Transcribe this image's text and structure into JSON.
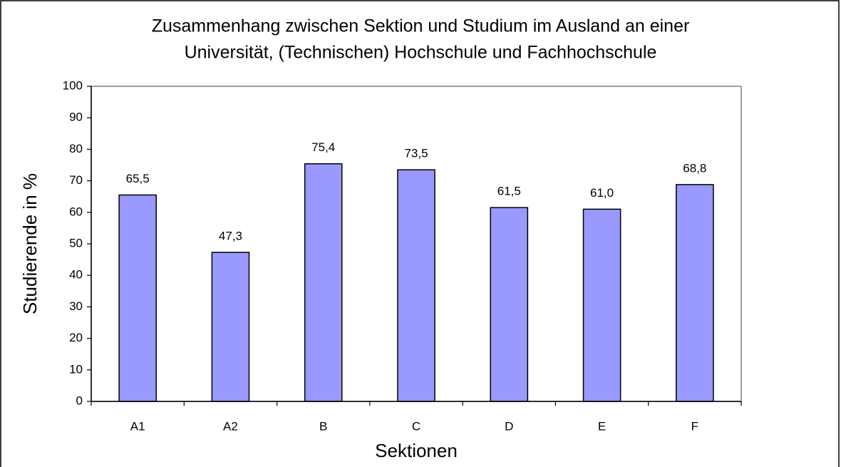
{
  "chart_data": {
    "type": "bar",
    "title": [
      "Zusammenhang zwischen Sektion und Studium im Ausland an einer",
      "Universität, (Technischen) Hochschule und Fachhochschule"
    ],
    "x_label": "Sektionen",
    "y_label": "Studierende in %",
    "categories": [
      "A1",
      "A2",
      "B",
      "C",
      "D",
      "E",
      "F"
    ],
    "values": [
      65.5,
      47.3,
      75.4,
      73.5,
      61.5,
      61.0,
      68.8
    ],
    "value_labels": [
      "65,5",
      "47,3",
      "75,4",
      "73,5",
      "61,5",
      "61,0",
      "68,8"
    ],
    "color": "#9999ff",
    "ylim": [
      0,
      100
    ],
    "yticks": [
      0,
      10,
      20,
      30,
      40,
      50,
      60,
      70,
      80,
      90,
      100
    ],
    "grid": false
  }
}
